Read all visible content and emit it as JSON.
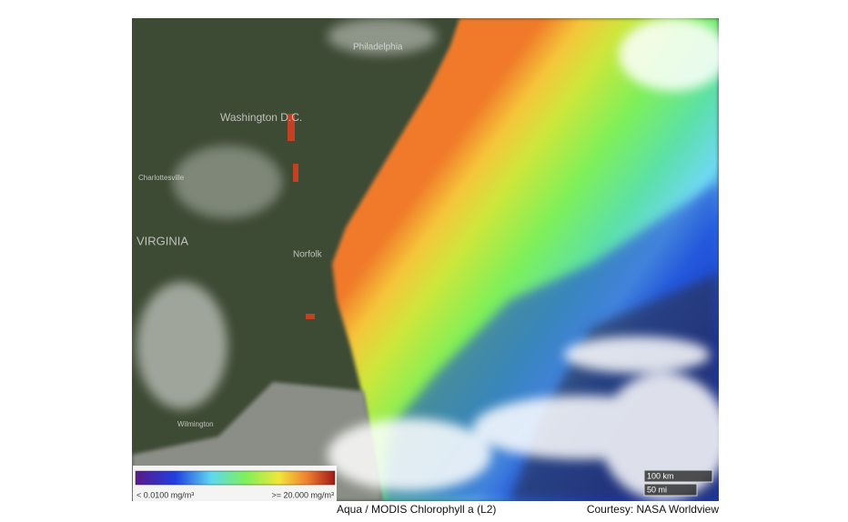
{
  "map": {
    "place_labels": [
      "Philadelphia",
      "Washington D.C.",
      "Charlottesville",
      "VIRGINIA",
      "Norfolk",
      "Wilmington"
    ],
    "legend": {
      "min_label": "< 0.0100 mg/m³",
      "max_label": ">= 20.000 mg/m³"
    },
    "scale": {
      "km": "100 km",
      "mi": "50 mi"
    }
  },
  "caption": {
    "title": "Aqua / MODIS Chlorophyll a (L2)",
    "credit": "Courtesy: NASA Worldview"
  }
}
